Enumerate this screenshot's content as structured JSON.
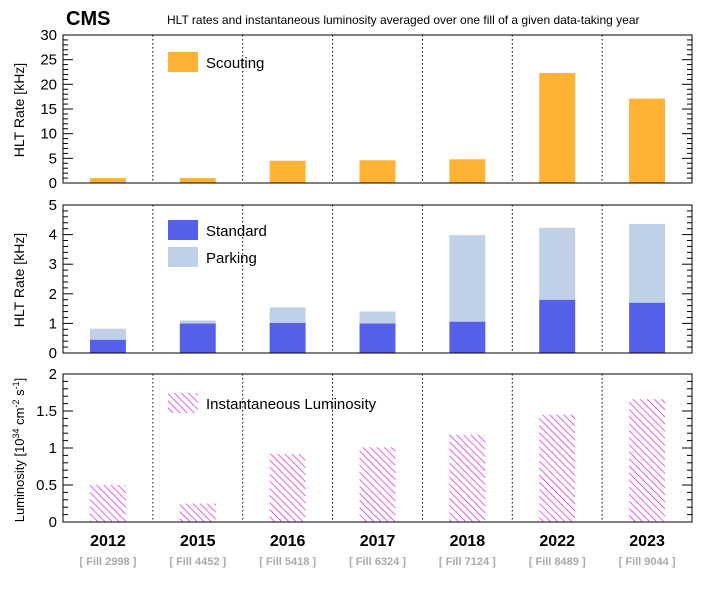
{
  "header": {
    "logo": "CMS",
    "title": "HLT rates and instantaneous luminosity averaged over one fill of a given data-taking year"
  },
  "chart_data": {
    "type": "bar",
    "categories": [
      "2012",
      "2015",
      "2016",
      "2017",
      "2018",
      "2022",
      "2023"
    ],
    "fills": [
      "[ Fill 2998 ]",
      "[ Fill 4452 ]",
      "[ Fill 5418 ]",
      "[ Fill 6324 ]",
      "[ Fill 7124 ]",
      "[ Fill 8489 ]",
      "[ Fill 9044 ]"
    ],
    "panels": [
      {
        "id": "scouting",
        "ylabel": "HLT Rate [kHz]",
        "ylim": [
          0,
          30
        ],
        "yticks": [
          0,
          5,
          10,
          15,
          20,
          25,
          30
        ],
        "ytick_labels": [
          "0",
          "5",
          "10",
          "15",
          "20",
          "25",
          "30"
        ],
        "stacked": false,
        "series": [
          {
            "name": "Scouting",
            "color": "#ffb233",
            "pattern": "solid",
            "values": [
              1.0,
              1.0,
              4.5,
              4.6,
              4.8,
              22.3,
              17.1
            ]
          }
        ]
      },
      {
        "id": "rates",
        "ylabel": "HLT Rate [kHz]",
        "ylim": [
          0,
          5
        ],
        "yticks": [
          0,
          1,
          2,
          3,
          4,
          5
        ],
        "ytick_labels": [
          "0",
          "1",
          "2",
          "3",
          "4",
          "5"
        ],
        "stacked": true,
        "series": [
          {
            "name": "Standard",
            "color": "#5560e8",
            "pattern": "solid",
            "values": [
              0.45,
              1.0,
              1.02,
              1.0,
              1.06,
              1.8,
              1.7
            ]
          },
          {
            "name": "Parking",
            "color": "#c0d0e6",
            "pattern": "solid",
            "values": [
              0.37,
              0.1,
              0.52,
              0.4,
              2.92,
              2.43,
              2.66
            ]
          }
        ]
      },
      {
        "id": "lumi",
        "ylabel_main": "Luminosity [10",
        "ylabel_sup1": "34",
        "ylabel_mid": " cm",
        "ylabel_sup2": "-2",
        "ylabel_end": " s",
        "ylabel_sup3": "-1",
        "ylabel_close": "]",
        "ylim": [
          0,
          2
        ],
        "yticks": [
          0,
          0.5,
          1,
          1.5,
          2
        ],
        "ytick_labels": [
          "0",
          "0.5",
          "1",
          "1.5",
          "2"
        ],
        "stacked": false,
        "series": [
          {
            "name": "Instantaneous Luminosity",
            "color": "#e020e0",
            "pattern": "hatch",
            "values": [
              0.5,
              0.25,
              0.92,
              1.01,
              1.18,
              1.45,
              1.66
            ]
          }
        ]
      }
    ]
  }
}
